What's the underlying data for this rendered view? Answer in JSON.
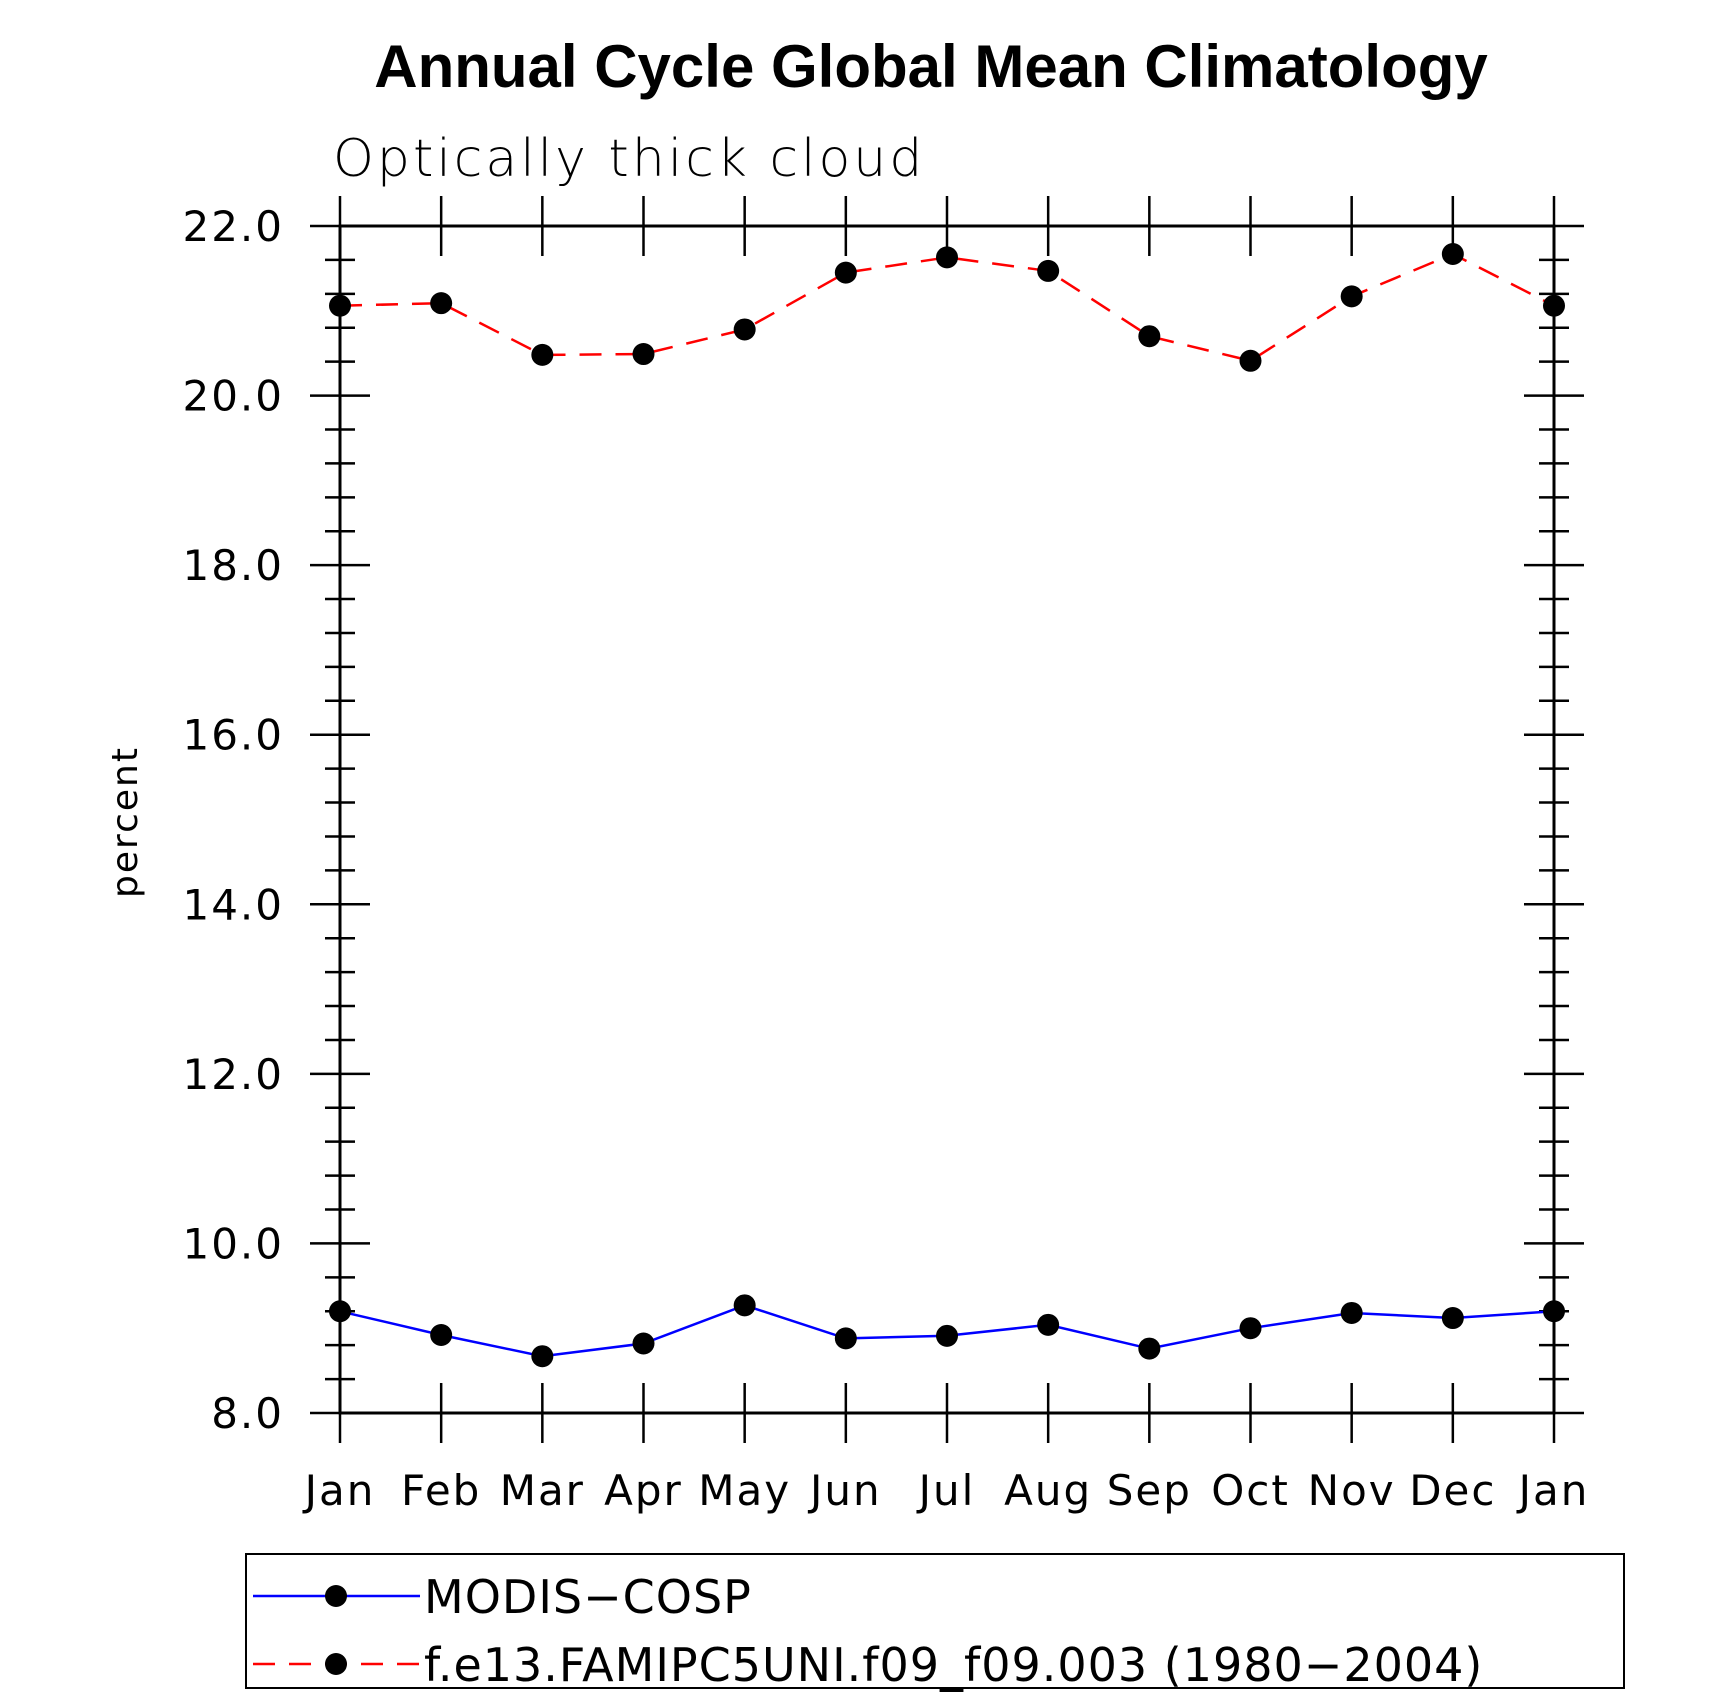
{
  "chart_data": {
    "type": "line",
    "title": "Annual Cycle Global Mean Climatology",
    "subtitle": "Optically thick cloud",
    "ylabel": "percent",
    "xlabel": "",
    "ylim": [
      8.0,
      22.0
    ],
    "yticks": [
      "8.0",
      "10.0",
      "12.0",
      "14.0",
      "16.0",
      "18.0",
      "20.0",
      "22.0"
    ],
    "categories": [
      "Jan",
      "Feb",
      "Mar",
      "Apr",
      "May",
      "Jun",
      "Jul",
      "Aug",
      "Sep",
      "Oct",
      "Nov",
      "Dec",
      "Jan"
    ],
    "series": [
      {
        "name": "MODIS−COSP",
        "color": "#0000ff",
        "dash": "solid",
        "values": [
          9.2,
          8.92,
          8.67,
          8.82,
          9.27,
          8.88,
          8.91,
          9.04,
          8.76,
          9.0,
          9.18,
          9.12,
          9.2
        ]
      },
      {
        "name": "f.e13.FAMIPC5UNI.f09_f09.003 (1980−2004)",
        "color": "#ff0000",
        "dash": "dashed",
        "values": [
          21.06,
          21.09,
          20.48,
          20.49,
          20.78,
          21.45,
          21.63,
          21.47,
          20.7,
          20.41,
          21.17,
          21.67,
          21.06
        ]
      }
    ],
    "legend_position": "bottom",
    "grid": false,
    "marker": "filled-circle",
    "marker_color": "#000000"
  }
}
